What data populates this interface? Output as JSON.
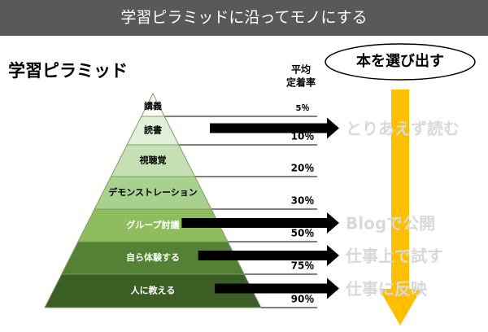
{
  "header": {
    "title": "学習ピラミッドに沿ってモノにする"
  },
  "diagram": {
    "title": "学習ピラミッド",
    "retention_header": [
      "平均",
      "定着率"
    ],
    "goal": "本を選び出す",
    "layers": [
      {
        "label": "講義",
        "retention": "5％"
      },
      {
        "label": "読書",
        "retention": "10％"
      },
      {
        "label": "視聴覚",
        "retention": "20％"
      },
      {
        "label": "デモンストレーション",
        "retention": "30％"
      },
      {
        "label": "グループ討議",
        "retention": "50％"
      },
      {
        "label": "自ら体験する",
        "retention": "75％"
      },
      {
        "label": "人に教える",
        "retention": "90％"
      }
    ],
    "actions": [
      {
        "layer": 1,
        "label": "とりあえず読む"
      },
      {
        "layer": 4,
        "label": "Blogで公開"
      },
      {
        "layer": 5,
        "label": "仕事上で試す"
      },
      {
        "layer": 6,
        "label": "仕事に反映"
      }
    ]
  }
}
